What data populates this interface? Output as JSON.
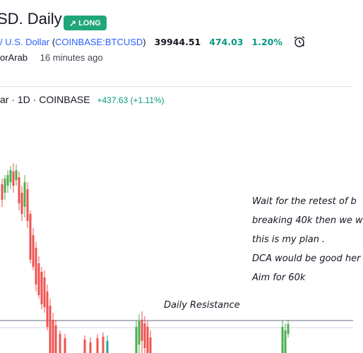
{
  "header": {
    "title": "SD. Daily",
    "badge": "LONG",
    "symbol_link": "/ U.S. Dollar",
    "symbol_code": "COINBASE:BTCUSD",
    "price": "39944.51",
    "change": "474.03",
    "change_pct": "1.20%",
    "author": "orArab",
    "time_ago": "16 minutes ago"
  },
  "legend": {
    "text": "ar · 1D · COINBASE",
    "change": "+437.63 (+1.11%)"
  },
  "annotations": {
    "plan_lines": [
      "Wait for the retest of b",
      "breaking 40k then we w",
      "this is my plan .",
      "DCA would be good her",
      "Aim for 60k"
    ],
    "resistance_label": "Daily Resistance"
  },
  "colors": {
    "up": "#26a69a",
    "down": "#ef5350",
    "up_highlight": "#4caf50",
    "accent": "#2962ff",
    "badge": "#1fa67a"
  }
}
